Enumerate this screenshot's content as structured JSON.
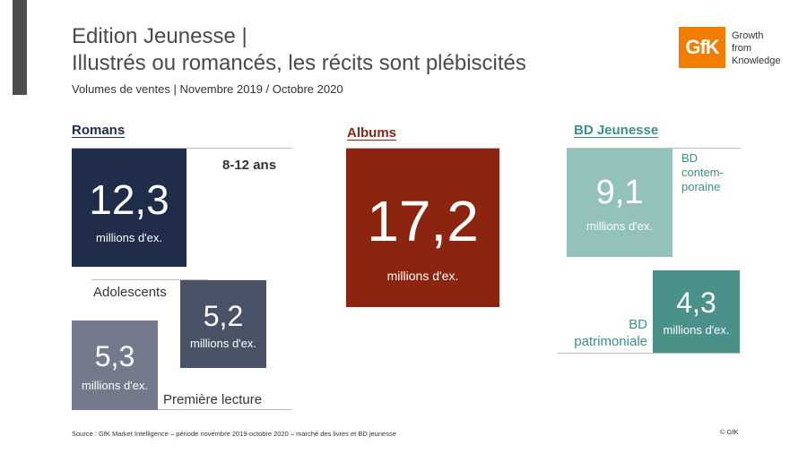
{
  "header": {
    "title_line1": "Edition Jeunesse |",
    "title_line2": "Illustrés ou romancés, les récits sont plébiscités",
    "subtitle": "Volumes de ventes | Novembre 2019 / Octobre 2020"
  },
  "logo": {
    "mark": "GfK",
    "tagline": [
      "Growth",
      "from",
      "Knowledge"
    ],
    "colors": {
      "brand": "#f07d00"
    }
  },
  "romans": {
    "heading": "Romans",
    "segments": [
      {
        "label": "8-12 ans",
        "value": "12,3",
        "unit": "millions d'ex.",
        "color": "#1f2c4a"
      },
      {
        "label": "Adolescents",
        "value": "5,2",
        "unit": "millions d'ex.",
        "color": "#4a5268"
      },
      {
        "label": "Première lecture",
        "value": "5,3",
        "unit": "millions d'ex.",
        "color": "#727a8c"
      }
    ]
  },
  "albums": {
    "heading": "Albums",
    "value": "17,2",
    "unit": "millions d'ex.",
    "color": "#8b2510"
  },
  "bd": {
    "heading": "BD Jeunesse",
    "segments": [
      {
        "label": "BD contem-poraine",
        "label_lines": [
          "BD",
          "contem-",
          "poraine"
        ],
        "value": "9,1",
        "unit": "millions d'ex.",
        "color": "#93c2bd"
      },
      {
        "label": "BD patrimoniale",
        "label_lines": [
          "BD",
          "patrimoniale"
        ],
        "value": "4,3",
        "unit": "millions d'ex.",
        "color": "#4a9189"
      }
    ],
    "text_color": "#3e8f86"
  },
  "footer": {
    "source": "Source : GfK Market Intelligence – période novembre 2019-octobre 2020 – marché des livres et BD jeunesse",
    "copyright": "© GfK"
  }
}
